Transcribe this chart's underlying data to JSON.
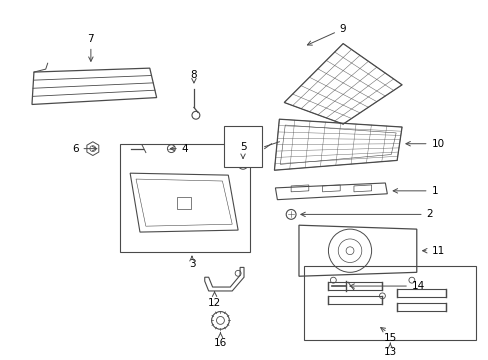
{
  "bg_color": "#ffffff",
  "fig_width": 4.89,
  "fig_height": 3.6,
  "dpi": 100,
  "line_color": "#4a4a4a",
  "text_color": "#000000",
  "font_size": 7.5
}
